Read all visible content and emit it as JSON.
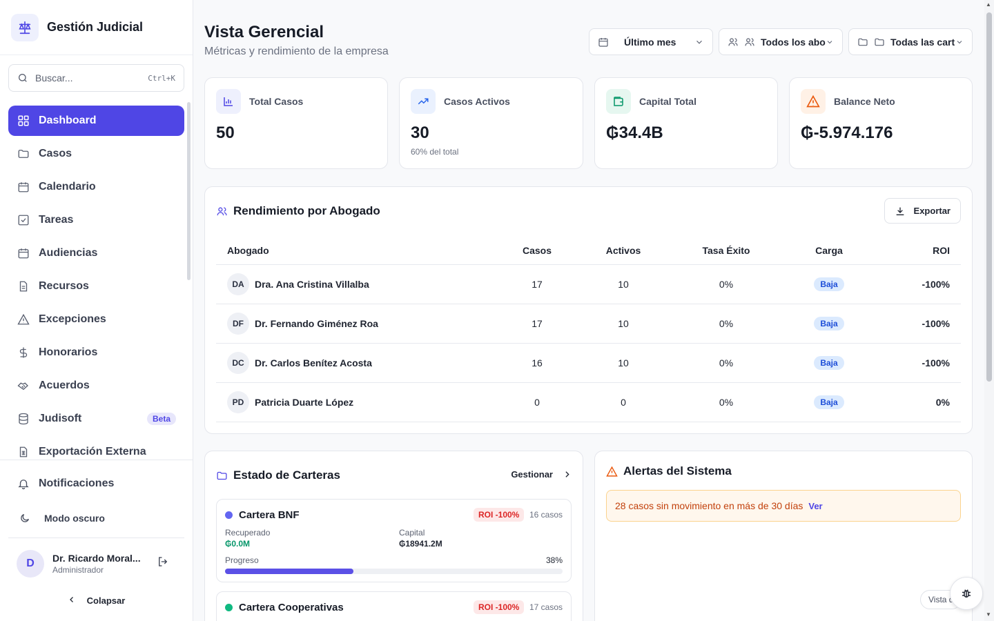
{
  "brand": {
    "title": "Gestión Judicial",
    "logo_icon": "scales-icon"
  },
  "search": {
    "placeholder": "Buscar...",
    "shortcut": "Ctrl+K"
  },
  "sidebar": {
    "items": [
      {
        "label": "Dashboard",
        "icon": "grid-icon",
        "active": true
      },
      {
        "label": "Casos",
        "icon": "folder-icon"
      },
      {
        "label": "Calendario",
        "icon": "calendar-icon"
      },
      {
        "label": "Tareas",
        "icon": "checkbox-icon"
      },
      {
        "label": "Audiencias",
        "icon": "calendar-icon"
      },
      {
        "label": "Recursos",
        "icon": "document-icon"
      },
      {
        "label": "Excepciones",
        "icon": "warning-icon"
      },
      {
        "label": "Honorarios",
        "icon": "dollar-icon"
      },
      {
        "label": "Acuerdos",
        "icon": "handshake-icon"
      },
      {
        "label": "Judisoft",
        "icon": "database-icon",
        "badge": "Beta"
      },
      {
        "label": "Exportación Externa",
        "icon": "spreadsheet-icon"
      }
    ],
    "notifications": "Notificaciones",
    "dark_mode": "Modo oscuro",
    "user": {
      "initial": "D",
      "name": "Dr. Ricardo Moral...",
      "role": "Administrador"
    },
    "collapse": "Colapsar"
  },
  "header": {
    "title": "Vista Gerencial",
    "subtitle": "Métricas y rendimiento de la empresa",
    "filters": {
      "period": "Último mes",
      "lawyers": "Todos los abo",
      "portfolios": "Todas las cart"
    }
  },
  "stats": [
    {
      "label": "Total Casos",
      "value": "50",
      "note": "",
      "icon": "bar-chart-icon",
      "color": "#4f46e5",
      "bg": "#eef0fd"
    },
    {
      "label": "Casos Activos",
      "value": "30",
      "note": "60% del total",
      "icon": "trending-up-icon",
      "color": "#2563eb",
      "bg": "#eaf1fe"
    },
    {
      "label": "Capital Total",
      "value": "₲34.4B",
      "note": "",
      "icon": "wallet-icon",
      "color": "#059669",
      "bg": "#e6f7f0"
    },
    {
      "label": "Balance Neto",
      "value": "₲-5.974.176",
      "note": "",
      "icon": "warning-icon",
      "color": "#ea580c",
      "bg": "#fff1e6"
    }
  ],
  "performance": {
    "title": "Rendimiento por Abogado",
    "export_label": "Exportar",
    "columns": [
      "Abogado",
      "Casos",
      "Activos",
      "Tasa Éxito",
      "Carga",
      "ROI"
    ],
    "rows": [
      {
        "initials": "DA",
        "name": "Dra. Ana Cristina Villalba",
        "cases": "17",
        "active": "10",
        "success": "0%",
        "load": "Baja",
        "roi": "-100%"
      },
      {
        "initials": "DF",
        "name": "Dr. Fernando Giménez Roa",
        "cases": "17",
        "active": "10",
        "success": "0%",
        "load": "Baja",
        "roi": "-100%"
      },
      {
        "initials": "DC",
        "name": "Dr. Carlos Benítez Acosta",
        "cases": "16",
        "active": "10",
        "success": "0%",
        "load": "Baja",
        "roi": "-100%"
      },
      {
        "initials": "PD",
        "name": "Patricia Duarte López",
        "cases": "0",
        "active": "0",
        "success": "0%",
        "load": "Baja",
        "roi": "0%"
      }
    ]
  },
  "portfolios": {
    "title": "Estado de Carteras",
    "manage_label": "Gestionar",
    "items": [
      {
        "name": "Cartera BNF",
        "dot_color": "#6366f1",
        "roi": "ROI -100%",
        "count": "16 casos",
        "recovered_label": "Recuperado",
        "recovered": "₲0.0M",
        "capital_label": "Capital",
        "capital": "₲18941.2M",
        "progress_label": "Progreso",
        "progress": "38%",
        "progress_value": 0.38
      },
      {
        "name": "Cartera Cooperativas",
        "dot_color": "#10b981",
        "roi": "ROI -100%",
        "count": "17 casos"
      }
    ]
  },
  "alerts": {
    "title": "Alertas del Sistema",
    "items": [
      {
        "text": "28 casos sin movimiento en más de 30 días",
        "link": "Ver"
      }
    ]
  },
  "floating": {
    "pill_text": "Vista d",
    "bug_icon": "bug-icon"
  }
}
